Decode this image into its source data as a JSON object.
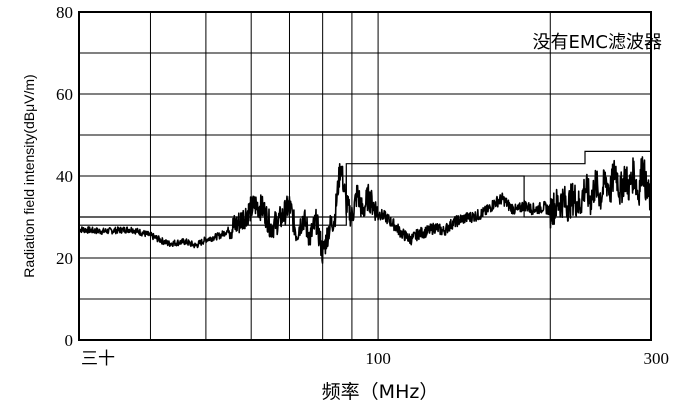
{
  "chart_data": {
    "type": "line",
    "xlabel": "频率（MHz）",
    "ylabel": "Radiation field intensity(dBμV/m)",
    "annotation": "没有EMC滤波器",
    "x_scale": "log",
    "xlim": [
      30,
      300
    ],
    "ylim": [
      0,
      80
    ],
    "grid": true,
    "x_tick_labels": [
      "三十",
      "100",
      "300"
    ],
    "y_tick_labels": [
      "0",
      "20",
      "40",
      "60",
      "80"
    ],
    "x_grid_mhz": [
      40,
      50,
      60,
      70,
      80,
      90,
      100,
      200
    ],
    "series": [
      {
        "role": "spectrum",
        "x": [
          30,
          33,
          37,
          40,
          43,
          46,
          48,
          50,
          53,
          57,
          59,
          61,
          63,
          65,
          68,
          70,
          72,
          74,
          76,
          78,
          80,
          82,
          84,
          86,
          88,
          90,
          92,
          94,
          96,
          100,
          103,
          106,
          110,
          114,
          118,
          122,
          126,
          130,
          135,
          140,
          145,
          150,
          155,
          160,
          165,
          170,
          175,
          180,
          185,
          190,
          195,
          200,
          205,
          210,
          215,
          220,
          225,
          230,
          235,
          240,
          245,
          250,
          255,
          260,
          265,
          270,
          275,
          280,
          285,
          290,
          295,
          300
        ],
        "y": [
          27,
          26.5,
          27,
          25.5,
          23.5,
          24,
          23,
          24.5,
          25.5,
          28.5,
          31,
          33,
          32,
          27.5,
          30,
          33,
          26,
          30,
          25,
          29,
          21,
          27,
          30,
          43,
          33,
          30,
          36,
          31,
          35,
          31,
          30,
          28.5,
          26,
          24.5,
          26,
          26.5,
          27.5,
          26.5,
          28.5,
          29.5,
          30,
          30.5,
          31.5,
          33.5,
          34.5,
          32.5,
          31.5,
          33,
          32,
          32,
          32.5,
          31.5,
          33,
          34,
          33,
          35,
          32.5,
          37.5,
          34,
          38,
          35,
          39,
          36.5,
          42,
          36,
          40,
          37,
          41,
          35.5,
          43,
          36,
          34
        ]
      },
      {
        "role": "limit-line-upper",
        "x": [
          30,
          88,
          88,
          230,
          230,
          300
        ],
        "y": [
          30,
          30,
          43,
          43,
          46,
          46
        ]
      },
      {
        "role": "limit-line-lower",
        "x": [
          30,
          88,
          88,
          180,
          180,
          300
        ],
        "y": [
          28,
          28,
          40,
          40,
          30,
          30
        ]
      }
    ]
  }
}
